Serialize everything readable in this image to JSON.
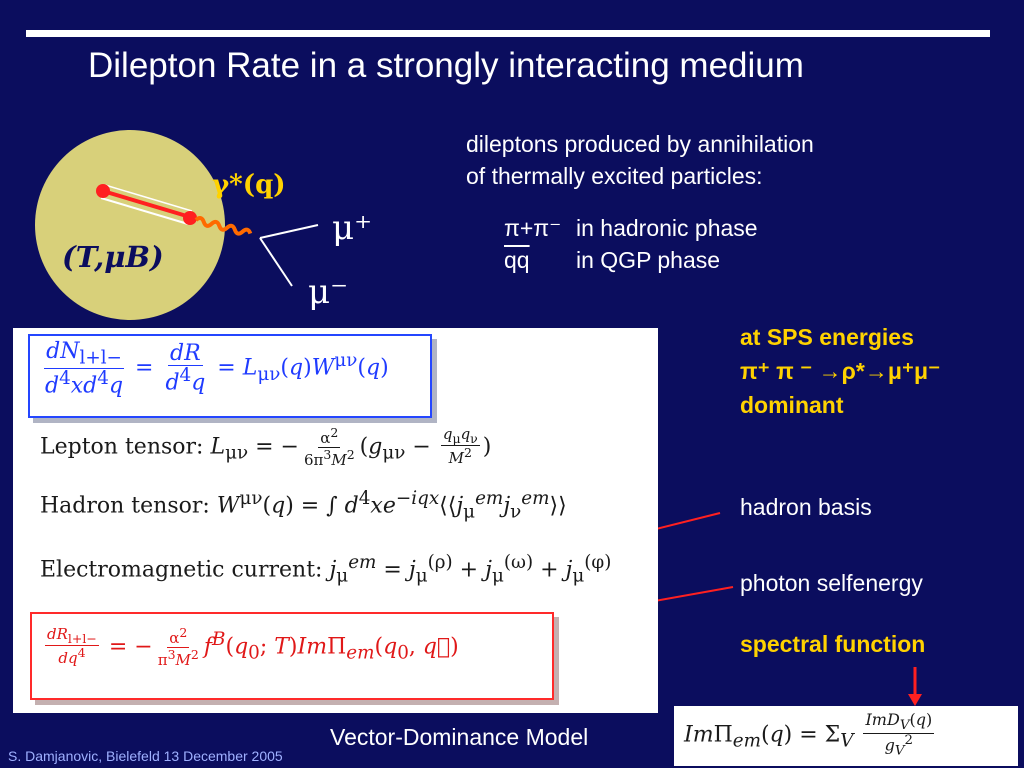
{
  "slide": {
    "title": "Dilepton Rate in a strongly interacting medium",
    "intro_line1": "dileptons produced by annihilation",
    "intro_line2": "of thermally excited particles:",
    "phase1_lead": "π+π⁻",
    "phase1_text": "in hadronic phase",
    "phase2_lead": "qq",
    "phase2_text": "in QGP phase",
    "sps_line1": "at SPS energies",
    "sps_line2": "π⁺ π ⁻ →ρ*→μ⁺μ⁻",
    "sps_line3": "dominant",
    "hadron_basis": "hadron basis",
    "photon_selfenergy": "photon selfenergy",
    "spectral_function": "spectral function",
    "vector_dominance": "Vector-Dominance Model",
    "footer": "S. Damjanovic, Bielefeld 13 December 2005"
  },
  "diagram": {
    "gamma_label": "γ*(q)",
    "medium_label": "(T,μB)",
    "mu_plus": "μ⁺",
    "mu_minus": "μ⁻"
  },
  "equations": {
    "lepton_label": "Lepton tensor:",
    "hadron_label": "Hadron tensor:",
    "em_label": "Electromagnetic current:"
  },
  "colors": {
    "background": "#0b0d5e",
    "accent_yellow": "#ffd200",
    "box_blue": "#2446ff",
    "box_red": "#ff2a2a",
    "arrow_red": "#ff2020",
    "photon_orange": "#ff6a00",
    "medium_fill": "#d8d07a"
  }
}
